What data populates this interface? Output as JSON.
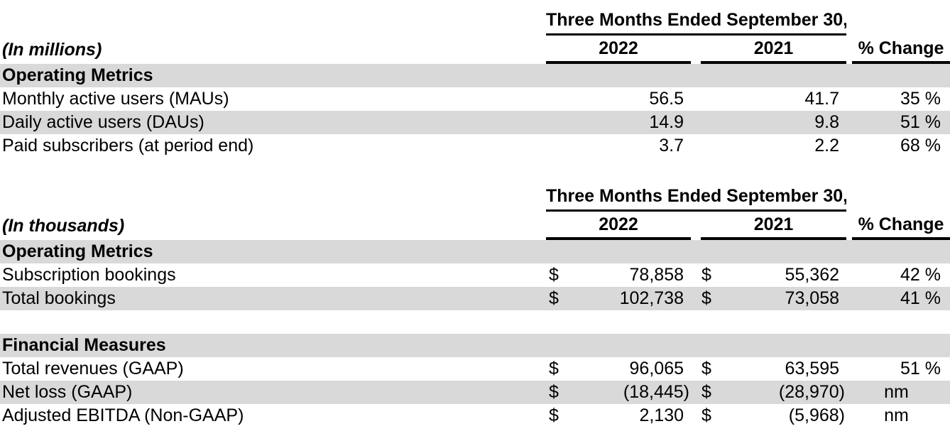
{
  "colors": {
    "row_band": "#d9d9d9",
    "text": "#000000",
    "rule": "#000000",
    "background": "#ffffff"
  },
  "table1": {
    "period_header": "Three Months Ended September 30,",
    "unit_label": "(In millions)",
    "columns": {
      "y2022": "2022",
      "y2021": "2021",
      "change": "% Change"
    },
    "section_header": "Operating Metrics",
    "rows": [
      {
        "label": "Monthly active users (MAUs)",
        "v2022": "56.5",
        "v2021": "41.7",
        "change": "35 %"
      },
      {
        "label": "Daily active users (DAUs)",
        "v2022": "14.9",
        "v2021": "9.8",
        "change": "51 %"
      },
      {
        "label": "Paid subscribers (at period end)",
        "v2022": "3.7",
        "v2021": "2.2",
        "change": "68 %"
      }
    ]
  },
  "table2": {
    "period_header": "Three Months Ended September 30,",
    "unit_label": "(In thousands)",
    "columns": {
      "y2022": "2022",
      "y2021": "2021",
      "change": "% Change"
    },
    "currency": "$",
    "section1_header": "Operating Metrics",
    "section1_rows": [
      {
        "label": "Subscription bookings",
        "v2022": "78,858",
        "v2021": "55,362",
        "change": "42 %"
      },
      {
        "label": "Total bookings",
        "v2022": "102,738",
        "v2021": "73,058",
        "change": "41 %"
      }
    ],
    "section2_header": "Financial Measures",
    "section2_rows": [
      {
        "label": "Total revenues (GAAP)",
        "v2022": "96,065",
        "v2021": "63,595",
        "change": "51 %"
      },
      {
        "label": "Net loss (GAAP)",
        "v2022": "(18,445)",
        "v2021": "(28,970)",
        "change": "nm"
      },
      {
        "label": "Adjusted EBITDA (Non-GAAP)",
        "v2022": "2,130",
        "v2021": "(5,968)",
        "change": "nm"
      }
    ]
  }
}
